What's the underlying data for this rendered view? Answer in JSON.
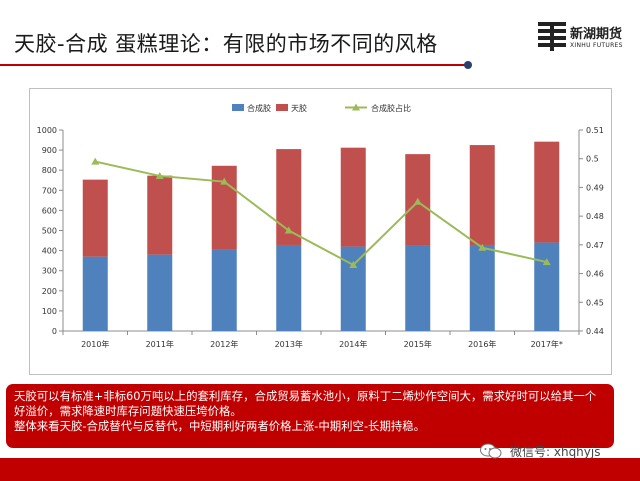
{
  "header": {
    "title": "天胶-合成 蛋糕理论：有限的市场不同的风格"
  },
  "logo": {
    "name_cn": "新湖期货",
    "name_en": "XINHU FUTURES"
  },
  "note": {
    "line1": "天胶可以有标准+非标60万吨以上的套利库存，合成贸易蓄水池小，原料丁二烯炒作空间大，需求好时可以给其一个好溢价，需求降速时库存问题快速压垮价格。",
    "line2": "整体来看天胶-合成替代与反替代，中短期利好两者价格上涨-中期利空-长期持稳。"
  },
  "watermark": {
    "text": "微信号: xhqhyjs"
  },
  "colors": {
    "synthetic": "#4f81bd",
    "natural": "#c0504d",
    "ratio": "#9bbb59",
    "accent": "#c00000"
  },
  "chart_data": {
    "type": "bar",
    "stacked": true,
    "categories": [
      "2010年",
      "2011年",
      "2012年",
      "2013年",
      "2014年",
      "2015年",
      "2016年",
      "2017年*"
    ],
    "series": [
      {
        "name": "合成胶",
        "kind": "bar",
        "axis": "left",
        "values": [
          370,
          380,
          405,
          428,
          420,
          425,
          428,
          440
        ]
      },
      {
        "name": "天胶",
        "kind": "bar",
        "axis": "left",
        "values": [
          383,
          393,
          417,
          477,
          492,
          455,
          497,
          502
        ]
      },
      {
        "name": "合成胶占比",
        "kind": "line",
        "axis": "right",
        "values": [
          0.499,
          0.494,
          0.492,
          0.475,
          0.463,
          0.485,
          0.469,
          0.464
        ]
      }
    ],
    "ylim": [
      0,
      1000
    ],
    "yticks": [
      0,
      100,
      200,
      300,
      400,
      500,
      600,
      700,
      800,
      900,
      1000
    ],
    "y2lim": [
      0.44,
      0.51
    ],
    "y2ticks": [
      0.44,
      0.45,
      0.46,
      0.47,
      0.48,
      0.49,
      0.5,
      0.51
    ],
    "legend": "top-center",
    "grid": false
  }
}
